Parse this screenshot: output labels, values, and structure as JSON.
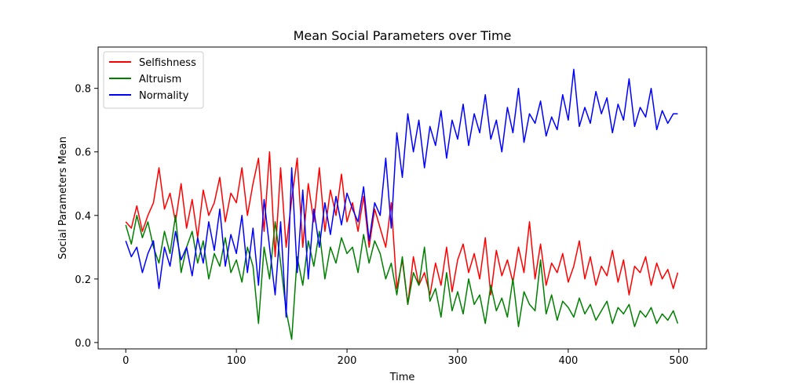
{
  "chart_data": {
    "type": "line",
    "title": "Mean Social Parameters over Time",
    "xlabel": "Time",
    "ylabel": "Social Parameters Mean",
    "xlim": [
      -25,
      525
    ],
    "ylim": [
      -0.02,
      0.93
    ],
    "xticks": [
      0,
      100,
      200,
      300,
      400,
      500
    ],
    "yticks": [
      0.0,
      0.2,
      0.4,
      0.6,
      0.8
    ],
    "ytick_labels": [
      "0.0",
      "0.2",
      "0.4",
      "0.6",
      "0.8"
    ],
    "legend_position": "upper-left",
    "grid": false,
    "series": [
      {
        "name": "Selfishness",
        "color": "#ff0000",
        "x": [
          0,
          5,
          10,
          15,
          20,
          25,
          30,
          35,
          40,
          45,
          50,
          55,
          60,
          65,
          70,
          75,
          80,
          85,
          90,
          95,
          100,
          105,
          110,
          115,
          120,
          125,
          130,
          135,
          140,
          145,
          150,
          155,
          160,
          165,
          170,
          175,
          180,
          185,
          190,
          195,
          200,
          205,
          210,
          215,
          220,
          225,
          230,
          235,
          240,
          245,
          250,
          255,
          260,
          265,
          270,
          275,
          280,
          285,
          290,
          295,
          300,
          305,
          310,
          315,
          320,
          325,
          330,
          335,
          340,
          345,
          350,
          355,
          360,
          365,
          370,
          375,
          380,
          385,
          390,
          395,
          400,
          405,
          410,
          415,
          420,
          425,
          430,
          435,
          440,
          445,
          450,
          455,
          460,
          465,
          470,
          475,
          480,
          485,
          490,
          495,
          499
        ],
        "values": [
          0.38,
          0.36,
          0.43,
          0.35,
          0.4,
          0.44,
          0.55,
          0.42,
          0.47,
          0.38,
          0.5,
          0.36,
          0.45,
          0.33,
          0.48,
          0.4,
          0.44,
          0.52,
          0.38,
          0.47,
          0.44,
          0.55,
          0.4,
          0.5,
          0.58,
          0.35,
          0.6,
          0.27,
          0.55,
          0.3,
          0.45,
          0.58,
          0.3,
          0.5,
          0.38,
          0.55,
          0.35,
          0.48,
          0.4,
          0.53,
          0.38,
          0.44,
          0.35,
          0.46,
          0.3,
          0.42,
          0.36,
          0.3,
          0.44,
          0.17,
          0.26,
          0.12,
          0.27,
          0.18,
          0.22,
          0.15,
          0.25,
          0.18,
          0.3,
          0.16,
          0.26,
          0.31,
          0.22,
          0.28,
          0.2,
          0.33,
          0.15,
          0.29,
          0.21,
          0.26,
          0.19,
          0.3,
          0.22,
          0.38,
          0.2,
          0.31,
          0.18,
          0.25,
          0.22,
          0.28,
          0.19,
          0.24,
          0.32,
          0.2,
          0.27,
          0.18,
          0.24,
          0.21,
          0.29,
          0.19,
          0.26,
          0.15,
          0.24,
          0.22,
          0.27,
          0.18,
          0.25,
          0.2,
          0.23,
          0.17,
          0.22
        ]
      },
      {
        "name": "Altruism",
        "color": "#008000",
        "x": [
          0,
          5,
          10,
          15,
          20,
          25,
          30,
          35,
          40,
          45,
          50,
          55,
          60,
          65,
          70,
          75,
          80,
          85,
          90,
          95,
          100,
          105,
          110,
          115,
          120,
          125,
          130,
          135,
          140,
          145,
          150,
          155,
          160,
          165,
          170,
          175,
          180,
          185,
          190,
          195,
          200,
          205,
          210,
          215,
          220,
          225,
          230,
          235,
          240,
          245,
          250,
          255,
          260,
          265,
          270,
          275,
          280,
          285,
          290,
          295,
          300,
          305,
          310,
          315,
          320,
          325,
          330,
          335,
          340,
          345,
          350,
          355,
          360,
          365,
          370,
          375,
          380,
          385,
          390,
          395,
          400,
          405,
          410,
          415,
          420,
          425,
          430,
          435,
          440,
          445,
          450,
          455,
          460,
          465,
          470,
          475,
          480,
          485,
          490,
          495,
          499
        ],
        "values": [
          0.37,
          0.31,
          0.4,
          0.33,
          0.38,
          0.3,
          0.25,
          0.35,
          0.28,
          0.4,
          0.22,
          0.3,
          0.35,
          0.25,
          0.32,
          0.2,
          0.28,
          0.24,
          0.33,
          0.22,
          0.26,
          0.19,
          0.3,
          0.24,
          0.06,
          0.3,
          0.2,
          0.38,
          0.25,
          0.1,
          0.01,
          0.27,
          0.18,
          0.32,
          0.24,
          0.35,
          0.2,
          0.3,
          0.25,
          0.33,
          0.28,
          0.3,
          0.22,
          0.34,
          0.25,
          0.32,
          0.28,
          0.2,
          0.25,
          0.15,
          0.27,
          0.12,
          0.22,
          0.18,
          0.3,
          0.13,
          0.17,
          0.08,
          0.22,
          0.1,
          0.16,
          0.09,
          0.2,
          0.12,
          0.15,
          0.06,
          0.18,
          0.1,
          0.14,
          0.08,
          0.2,
          0.05,
          0.16,
          0.12,
          0.1,
          0.26,
          0.09,
          0.15,
          0.07,
          0.13,
          0.11,
          0.08,
          0.14,
          0.09,
          0.12,
          0.07,
          0.1,
          0.13,
          0.06,
          0.11,
          0.09,
          0.12,
          0.05,
          0.1,
          0.08,
          0.11,
          0.06,
          0.09,
          0.07,
          0.1,
          0.06
        ]
      },
      {
        "name": "Normality",
        "color": "#0000ff",
        "x": [
          0,
          5,
          10,
          15,
          20,
          25,
          30,
          35,
          40,
          45,
          50,
          55,
          60,
          65,
          70,
          75,
          80,
          85,
          90,
          95,
          100,
          105,
          110,
          115,
          120,
          125,
          130,
          135,
          140,
          145,
          150,
          155,
          160,
          165,
          170,
          175,
          180,
          185,
          190,
          195,
          200,
          205,
          210,
          215,
          220,
          225,
          230,
          235,
          240,
          245,
          250,
          255,
          260,
          265,
          270,
          275,
          280,
          285,
          290,
          295,
          300,
          305,
          310,
          315,
          320,
          325,
          330,
          335,
          340,
          345,
          350,
          355,
          360,
          365,
          370,
          375,
          380,
          385,
          390,
          395,
          400,
          405,
          410,
          415,
          420,
          425,
          430,
          435,
          440,
          445,
          450,
          455,
          460,
          465,
          470,
          475,
          480,
          485,
          490,
          495,
          499
        ],
        "values": [
          0.32,
          0.27,
          0.3,
          0.22,
          0.28,
          0.32,
          0.17,
          0.3,
          0.24,
          0.35,
          0.26,
          0.3,
          0.21,
          0.33,
          0.25,
          0.38,
          0.29,
          0.42,
          0.24,
          0.34,
          0.28,
          0.4,
          0.22,
          0.36,
          0.18,
          0.45,
          0.3,
          0.15,
          0.38,
          0.08,
          0.55,
          0.22,
          0.48,
          0.2,
          0.42,
          0.3,
          0.44,
          0.34,
          0.46,
          0.37,
          0.47,
          0.42,
          0.38,
          0.49,
          0.32,
          0.44,
          0.4,
          0.58,
          0.36,
          0.66,
          0.52,
          0.72,
          0.6,
          0.7,
          0.55,
          0.68,
          0.62,
          0.73,
          0.58,
          0.7,
          0.64,
          0.75,
          0.62,
          0.72,
          0.66,
          0.78,
          0.64,
          0.7,
          0.6,
          0.74,
          0.66,
          0.8,
          0.63,
          0.72,
          0.69,
          0.76,
          0.65,
          0.71,
          0.67,
          0.78,
          0.7,
          0.86,
          0.68,
          0.74,
          0.69,
          0.79,
          0.72,
          0.77,
          0.66,
          0.75,
          0.7,
          0.83,
          0.68,
          0.74,
          0.71,
          0.8,
          0.67,
          0.73,
          0.69,
          0.72,
          0.72
        ]
      }
    ]
  }
}
